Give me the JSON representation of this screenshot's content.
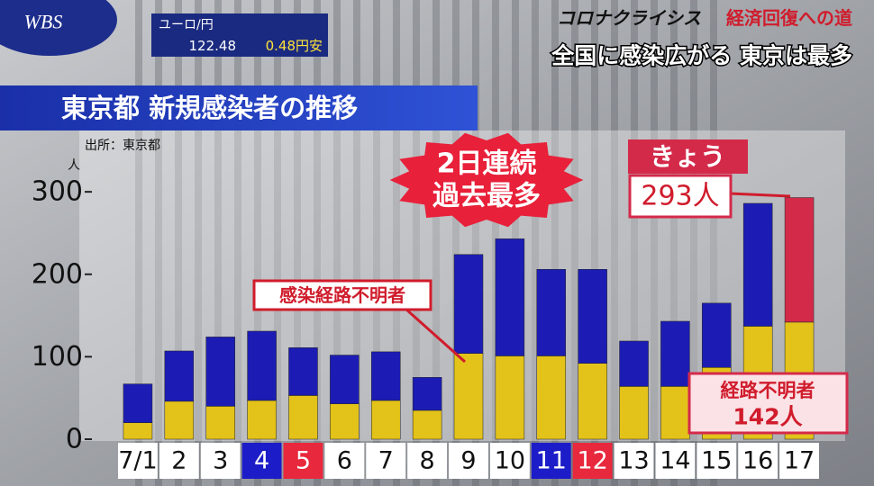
{
  "logo": "WBS",
  "ticker": {
    "label": "ユーロ/円",
    "rate": "122.48",
    "change": "0.48円安"
  },
  "headline": {
    "series": "コロナクライシス",
    "subtitle": "経済回復への道",
    "text": "全国に感染広がる 東京は最多"
  },
  "chart_data": {
    "type": "bar",
    "stacked": true,
    "title": "東京都 新規感染者の推移",
    "source": "出所：東京都",
    "y_unit": "人",
    "categories": [
      "7/1",
      "2",
      "3",
      "4",
      "5",
      "6",
      "7",
      "8",
      "9",
      "10",
      "11",
      "12",
      "13",
      "14",
      "15",
      "16",
      "17"
    ],
    "category_backgrounds": [
      "#ffffff",
      "#ffffff",
      "#ffffff",
      "#1c1cc8",
      "#e8283c",
      "#ffffff",
      "#ffffff",
      "#ffffff",
      "#ffffff",
      "#ffffff",
      "#1c1cc8",
      "#e8283c",
      "#ffffff",
      "#ffffff",
      "#ffffff",
      "#ffffff",
      "#ffffff"
    ],
    "series": [
      {
        "name": "感染経路不明者",
        "color": "#e3c21a",
        "values": [
          20,
          46,
          40,
          47,
          53,
          43,
          47,
          35,
          104,
          101,
          101,
          92,
          64,
          64,
          87,
          137,
          142
        ],
        "value_labels": [
          null,
          null,
          null,
          null,
          null,
          null,
          null,
          null,
          null,
          null,
          null,
          null,
          null,
          null,
          null,
          null,
          "142人"
        ]
      },
      {
        "color": "#1c1cb4",
        "colors": [
          "#1c1cb4",
          "#1c1cb4",
          "#1c1cb4",
          "#1c1cb4",
          "#1c1cb4",
          "#1c1cb4",
          "#1c1cb4",
          "#1c1cb4",
          "#1c1cb4",
          "#1c1cb4",
          "#1c1cb4",
          "#1c1cb4",
          "#1c1cb4",
          "#1c1cb4",
          "#1c1cb4",
          "#1c1cb4",
          "#d42a4a"
        ],
        "values": [
          47,
          61,
          84,
          84,
          58,
          59,
          59,
          40,
          120,
          142,
          105,
          114,
          55,
          79,
          78,
          149,
          151
        ]
      }
    ],
    "ylim": [
      0,
      370
    ],
    "yticks": [
      0,
      100,
      200,
      300
    ],
    "annotations": {
      "streak": [
        "2日連続",
        "過去最多"
      ],
      "today": "きょう",
      "today_total": "293人",
      "unknown_callout": "経路不明者"
    }
  }
}
